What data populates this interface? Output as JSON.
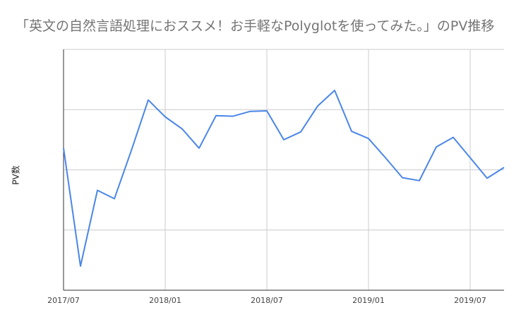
{
  "chart_data": {
    "type": "line",
    "title": "「英文の自然言語処理におススメ！お手軽なPolyglotを使ってみた。」のPV推移",
    "xlabel": "",
    "ylabel": "PV数",
    "x": [
      "2017/07",
      "2017/08",
      "2017/09",
      "2017/10",
      "2017/11",
      "2017/12",
      "2018/01",
      "2018/02",
      "2018/03",
      "2018/04",
      "2018/05",
      "2018/06",
      "2018/07",
      "2018/08",
      "2018/09",
      "2018/10",
      "2018/11",
      "2018/12",
      "2019/01",
      "2019/02",
      "2019/03",
      "2019/04",
      "2019/05",
      "2019/06",
      "2019/07",
      "2019/08",
      "2019/09"
    ],
    "series": [
      {
        "values": [
          236,
          40,
          166,
          152,
          232,
          316,
          288,
          268,
          236,
          290,
          289,
          297,
          298,
          250,
          263,
          306,
          332,
          264,
          252,
          220,
          187,
          182,
          238,
          254,
          220,
          186,
          204
        ]
      }
    ],
    "x_tick_labels": [
      "2017/07",
      "2018/01",
      "2018/07",
      "2019/01",
      "2019/07"
    ],
    "ylim": [
      0,
      400
    ],
    "y_gridlines": [
      0,
      100,
      200,
      300,
      400
    ],
    "grid": true,
    "line_color": "#4a86e8",
    "grid_color": "#cccccc"
  }
}
